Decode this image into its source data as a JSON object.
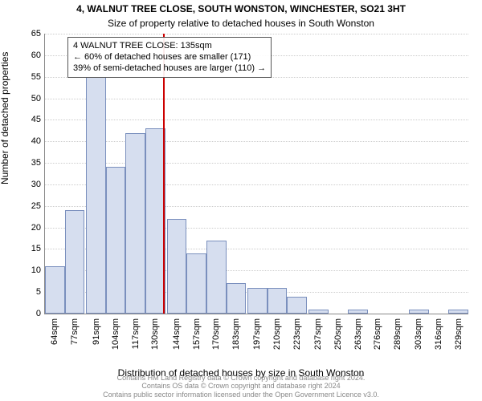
{
  "chart": {
    "type": "histogram",
    "title": "4, WALNUT TREE CLOSE, SOUTH WONSTON, WINCHESTER, SO21 3HT",
    "subtitle": "Size of property relative to detached houses in South Wonston",
    "ylabel": "Number of detached properties",
    "xlabel": "Distribution of detached houses by size in South Wonston",
    "title_fontsize": 12,
    "subtitle_fontsize": 12,
    "axis_label_fontsize": 12,
    "tick_fontsize": 11,
    "bar_fill": "#d6deef",
    "bar_stroke": "#7a8fbd",
    "grid_color": "#cccccc",
    "axis_color": "#888888",
    "marker_color": "#cc0000",
    "background_color": "#ffffff",
    "xlim": [
      57.5,
      335.5
    ],
    "ylim": [
      0,
      65
    ],
    "ytick_step": 5,
    "bar_width_sqm": 13,
    "x_tick_values": [
      64,
      77,
      91,
      104,
      117,
      130,
      144,
      157,
      170,
      183,
      197,
      210,
      223,
      237,
      250,
      263,
      276,
      289,
      303,
      316,
      329
    ],
    "x_tick_labels": [
      "64sqm",
      "77sqm",
      "91sqm",
      "104sqm",
      "117sqm",
      "130sqm",
      "144sqm",
      "157sqm",
      "170sqm",
      "183sqm",
      "197sqm",
      "210sqm",
      "223sqm",
      "237sqm",
      "250sqm",
      "263sqm",
      "276sqm",
      "289sqm",
      "303sqm",
      "316sqm",
      "329sqm"
    ],
    "bars": [
      {
        "x": 64,
        "count": 11
      },
      {
        "x": 77,
        "count": 24
      },
      {
        "x": 91,
        "count": 55
      },
      {
        "x": 104,
        "count": 34
      },
      {
        "x": 117,
        "count": 42
      },
      {
        "x": 130,
        "count": 43
      },
      {
        "x": 144,
        "count": 22
      },
      {
        "x": 157,
        "count": 14
      },
      {
        "x": 170,
        "count": 17
      },
      {
        "x": 183,
        "count": 7
      },
      {
        "x": 197,
        "count": 6
      },
      {
        "x": 210,
        "count": 6
      },
      {
        "x": 223,
        "count": 4
      },
      {
        "x": 237,
        "count": 1
      },
      {
        "x": 250,
        "count": 0
      },
      {
        "x": 263,
        "count": 1
      },
      {
        "x": 276,
        "count": 0
      },
      {
        "x": 289,
        "count": 0
      },
      {
        "x": 303,
        "count": 1
      },
      {
        "x": 316,
        "count": 0
      },
      {
        "x": 329,
        "count": 1
      }
    ],
    "marker_x": 135,
    "annotation": {
      "line1": "4 WALNUT TREE CLOSE: 135sqm",
      "line2": "← 60% of detached houses are smaller (171)",
      "line3": "39% of semi-detached houses are larger (110) →",
      "fontsize": 11
    }
  },
  "footer": {
    "line1": "Contains HM Land Registry data © Crown copyright and database right 2024.",
    "line2": "Contains OS data © Crown copyright and database right 2024",
    "line3": "Contains public sector information licensed under the Open Government Licence v3.0.",
    "fontsize": 9,
    "color": "#888888"
  }
}
